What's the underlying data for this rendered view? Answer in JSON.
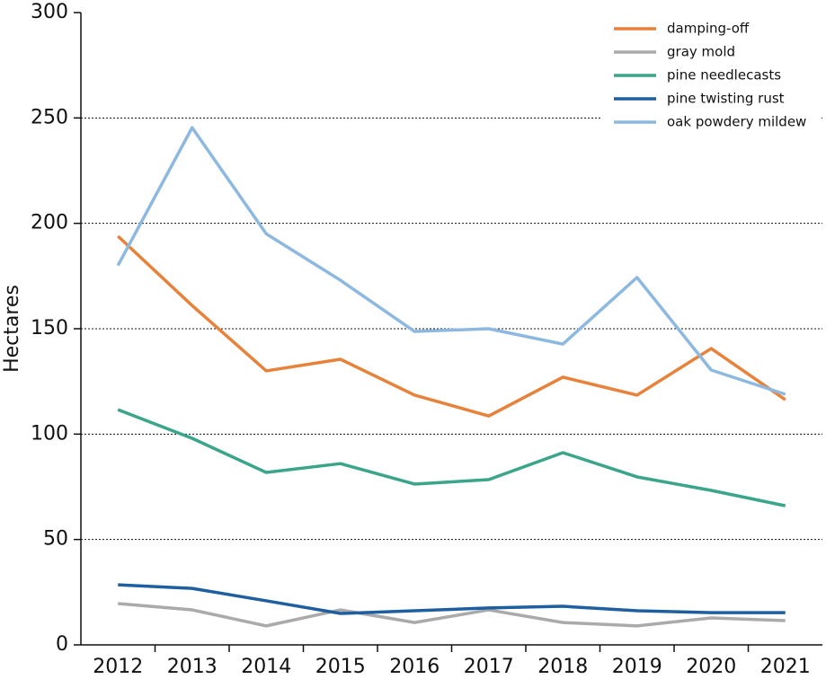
{
  "chart_data": {
    "type": "line",
    "y_label": "Hectares",
    "categories": [
      "2012",
      "2013",
      "2014",
      "2015",
      "2016",
      "2017",
      "2018",
      "2019",
      "2020",
      "2021"
    ],
    "series": [
      {
        "name": "damping-off",
        "color": "#e8823a",
        "values": [
          193.9,
          161,
          130,
          135.5,
          118.5,
          108.6,
          127,
          118.5,
          140.6,
          116.3
        ]
      },
      {
        "name": "gray mold",
        "color": "#aaaaaa",
        "values": [
          19.6,
          16.6,
          9,
          16.6,
          10.6,
          16.6,
          10.6,
          9,
          12.8,
          11.5
        ]
      },
      {
        "name": "pine needlecasts",
        "color": "#3aa58a",
        "values": [
          111.6,
          98,
          81.8,
          86,
          76.3,
          78.4,
          91.2,
          79.7,
          73.3,
          66
        ]
      },
      {
        "name": "pine twisting rust",
        "color": "#1f5fa0",
        "values": [
          28.5,
          26.8,
          20.9,
          14.9,
          16.2,
          17.5,
          18.3,
          16.2,
          15.3,
          15.3
        ]
      },
      {
        "name": "oak powdery mildew",
        "color": "#8db9e0",
        "values": [
          180,
          245.4,
          195,
          173,
          148.7,
          150,
          142.7,
          174.3,
          130.4,
          118.9
        ]
      }
    ],
    "ylim": [
      0,
      300
    ],
    "yticks": [
      0,
      50,
      100,
      150,
      200,
      250,
      300
    ],
    "grid": true,
    "legend": "top-right"
  }
}
